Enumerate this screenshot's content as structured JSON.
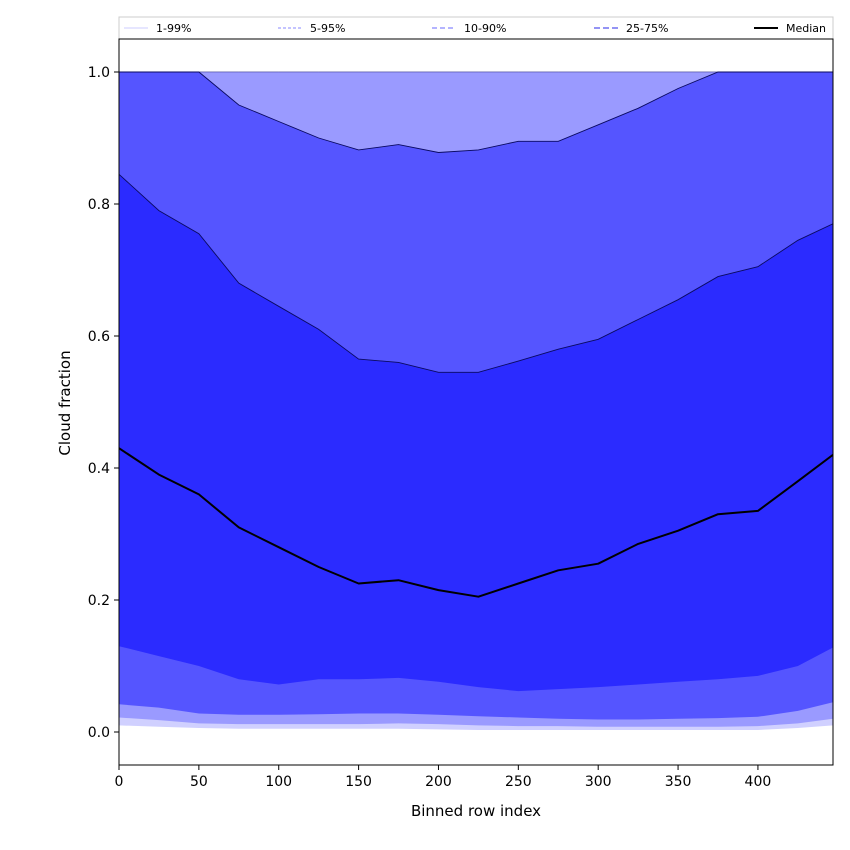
{
  "chart_data": {
    "type": "area",
    "title": "",
    "xlabel": "Binned row index",
    "ylabel": "Cloud fraction",
    "xlim": [
      0,
      447
    ],
    "ylim": [
      -0.05,
      1.05
    ],
    "x_ticks": [
      0,
      50,
      100,
      150,
      200,
      250,
      300,
      350,
      400
    ],
    "y_ticks": [
      0.0,
      0.2,
      0.4,
      0.6,
      0.8,
      1.0
    ],
    "y_tick_labels": [
      "0.0",
      "0.2",
      "0.4",
      "0.6",
      "0.8",
      "1.0"
    ],
    "grid": false,
    "legend_position": "top",
    "x": [
      0,
      25,
      50,
      75,
      100,
      125,
      150,
      175,
      200,
      225,
      250,
      275,
      300,
      325,
      350,
      375,
      400,
      425,
      447
    ],
    "bands": [
      {
        "name": "1-99%",
        "color": "#d0d0ff",
        "lower": [
          0.01,
          0.008,
          0.006,
          0.005,
          0.005,
          0.005,
          0.005,
          0.005,
          0.004,
          0.003,
          0.003,
          0.003,
          0.003,
          0.003,
          0.003,
          0.003,
          0.003,
          0.006,
          0.01
        ],
        "upper": [
          1,
          1,
          1,
          1,
          1,
          1,
          1,
          1,
          1,
          1,
          1,
          1,
          1,
          1,
          1,
          1,
          1,
          1,
          1
        ]
      },
      {
        "name": "5-95%",
        "color": "#9a9aff",
        "lower": [
          0.022,
          0.018,
          0.013,
          0.012,
          0.012,
          0.012,
          0.012,
          0.013,
          0.012,
          0.01,
          0.009,
          0.009,
          0.008,
          0.008,
          0.008,
          0.008,
          0.009,
          0.013,
          0.02
        ],
        "upper": [
          1,
          1,
          1,
          1,
          1,
          1,
          1,
          1,
          1,
          1,
          1,
          1,
          1,
          1,
          1,
          1,
          1,
          1,
          1
        ]
      },
      {
        "name": "10-90%",
        "color": "#5555ff",
        "lower": [
          0.042,
          0.037,
          0.028,
          0.026,
          0.026,
          0.027,
          0.028,
          0.028,
          0.026,
          0.024,
          0.022,
          0.02,
          0.019,
          0.019,
          0.02,
          0.021,
          0.023,
          0.032,
          0.045
        ],
        "upper": [
          1,
          1,
          1,
          0.95,
          0.925,
          0.9,
          0.882,
          0.89,
          0.878,
          0.882,
          0.895,
          0.895,
          0.92,
          0.945,
          0.975,
          1,
          1,
          1,
          1
        ]
      },
      {
        "name": "25-75%",
        "color": "#2b2bff",
        "lower": [
          0.13,
          0.115,
          0.1,
          0.08,
          0.072,
          0.08,
          0.08,
          0.082,
          0.076,
          0.068,
          0.062,
          0.065,
          0.068,
          0.072,
          0.076,
          0.08,
          0.085,
          0.1,
          0.128
        ],
        "upper": [
          0.845,
          0.79,
          0.755,
          0.68,
          0.645,
          0.61,
          0.565,
          0.56,
          0.545,
          0.545,
          0.562,
          0.58,
          0.595,
          0.625,
          0.655,
          0.69,
          0.705,
          0.745,
          0.77
        ]
      }
    ],
    "series": [
      {
        "name": "Median",
        "color": "#000000",
        "values": [
          0.43,
          0.39,
          0.36,
          0.31,
          0.28,
          0.25,
          0.225,
          0.23,
          0.215,
          0.205,
          0.225,
          0.245,
          0.255,
          0.285,
          0.305,
          0.33,
          0.335,
          0.38,
          0.42
        ]
      }
    ],
    "legend": [
      {
        "name": "1-99%",
        "color": "#d8d8ff",
        "dash": "0"
      },
      {
        "name": "5-95%",
        "color": "#a0a0ff",
        "dash": "3,2"
      },
      {
        "name": "10-90%",
        "color": "#8888ff",
        "dash": "5,3"
      },
      {
        "name": "25-75%",
        "color": "#5555ee",
        "dash": "6,3"
      },
      {
        "name": "Median",
        "color": "#000000",
        "dash": "0"
      }
    ]
  }
}
